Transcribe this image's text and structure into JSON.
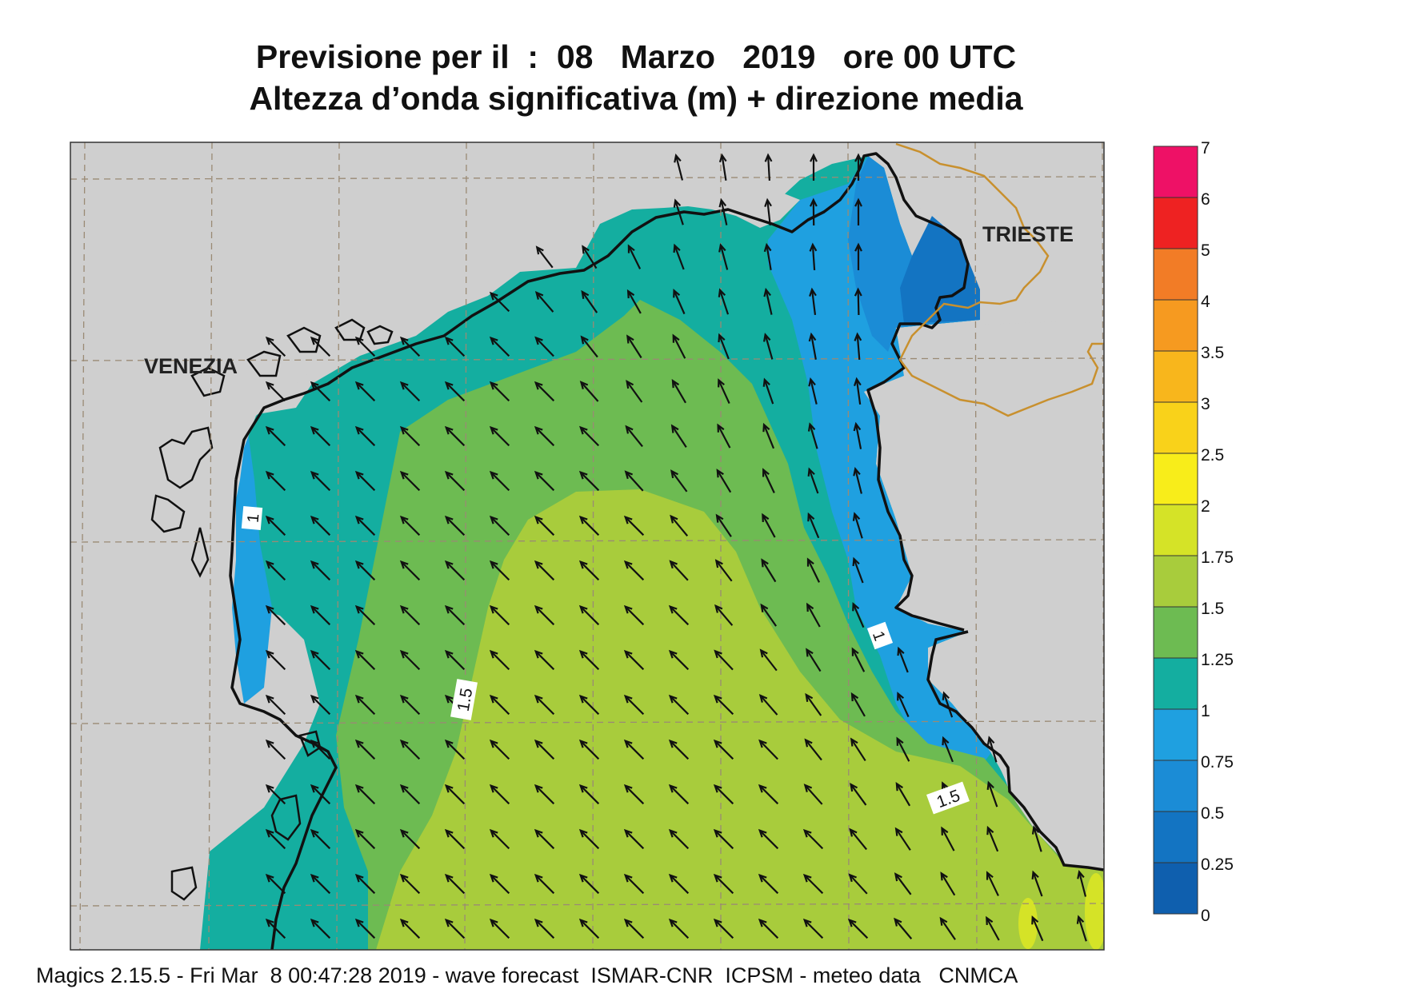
{
  "title": {
    "line1": "Previsione per il  :  08   Marzo   2019   ore 00 UTC",
    "line2": "Altezza d’onda significativa (m) + direzione media"
  },
  "cities": [
    "VENEZIA",
    "TRIESTE"
  ],
  "contour_labels": [
    "1",
    "1.5",
    "1",
    "1.5"
  ],
  "legend": {
    "levels": [
      "7",
      "6",
      "5",
      "4",
      "3.5",
      "3",
      "2.5",
      "2",
      "1.75",
      "1.5",
      "1.25",
      "1",
      "0.75",
      "0.5",
      "0.25",
      "0"
    ],
    "colors": [
      "#ee1166",
      "#ee2222",
      "#f27c26",
      "#f69a20",
      "#f8b61c",
      "#f9d21a",
      "#f8ed1a",
      "#d5e327",
      "#a8cc3c",
      "#6dbb52",
      "#14aea0",
      "#1fa0e0",
      "#1b8cd6",
      "#1374c2",
      "#0f5fae"
    ]
  },
  "footer": "Magics 2.15.5 - Fri Mar  8 00:47:28 2019 - wave forecast  ISMAR-CNR  ICPSM - meteo data   CNMCA",
  "colors": {
    "land": "#cfcfcf",
    "coastline": "#111111",
    "border": "#c8902e",
    "grid": "#9a8a74"
  }
}
